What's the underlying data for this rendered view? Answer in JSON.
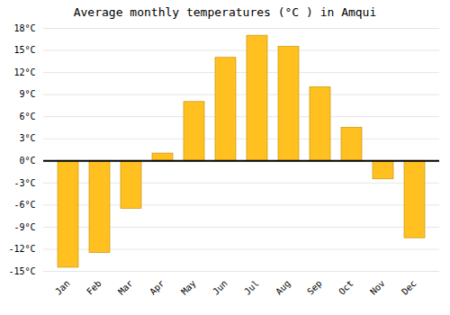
{
  "chart_data": {
    "type": "bar",
    "title": "Average monthly temperatures (°C ) in Amqui",
    "categories": [
      "Jan",
      "Feb",
      "Mar",
      "Apr",
      "May",
      "Jun",
      "Jul",
      "Aug",
      "Sep",
      "Oct",
      "Nov",
      "Dec"
    ],
    "values": [
      -14.5,
      -12.5,
      -6.5,
      1.0,
      8.0,
      14.0,
      17.0,
      15.5,
      10.0,
      4.5,
      -2.5,
      -10.5
    ],
    "color": "#FFC020",
    "ylim": [
      -15,
      18
    ],
    "yticks": [
      {
        "value": -15,
        "label": "-15°C"
      },
      {
        "value": -12,
        "label": "-12°C"
      },
      {
        "value": -9,
        "label": "-9°C"
      },
      {
        "value": -6,
        "label": "-6°C"
      },
      {
        "value": -3,
        "label": "-3°C"
      },
      {
        "value": 0,
        "label": "0°C"
      },
      {
        "value": 3,
        "label": "3°C"
      },
      {
        "value": 6,
        "label": "6°C"
      },
      {
        "value": 9,
        "label": "9°C"
      },
      {
        "value": 12,
        "label": "12°C"
      },
      {
        "value": 15,
        "label": "15°C"
      },
      {
        "value": 18,
        "label": "18°C"
      }
    ],
    "grid": true
  }
}
